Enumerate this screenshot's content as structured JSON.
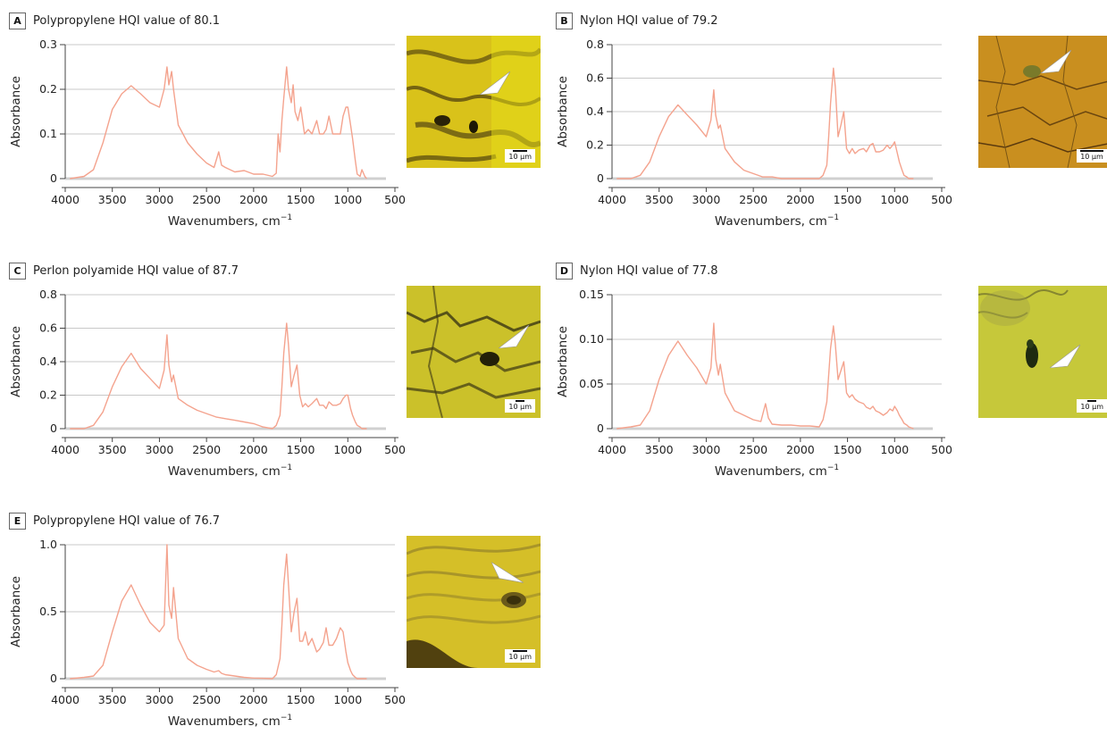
{
  "chart_data": [
    {
      "type": "line",
      "panel": "A",
      "title": "Polypropylene HQI value of 80.1",
      "xlabel": "Wavenumbers, cm",
      "xlabel_sup": "−1",
      "ylabel": "Absorbance",
      "xlim": [
        4000,
        500
      ],
      "xticks": [
        4000,
        3500,
        3000,
        2500,
        2000,
        1500,
        1000,
        500
      ],
      "ylim": [
        0,
        0.3
      ],
      "yticks": [
        0,
        0.1,
        0.2,
        0.3
      ],
      "ytick_labels": [
        "0",
        "0.1",
        "0.2",
        "0.3"
      ],
      "grid": true,
      "line_color": "#f4a38e",
      "scale_label": "10 µm",
      "x": [
        3950,
        3800,
        3700,
        3600,
        3500,
        3400,
        3300,
        3200,
        3100,
        3000,
        2950,
        2920,
        2900,
        2870,
        2850,
        2800,
        2700,
        2600,
        2500,
        2420,
        2370,
        2340,
        2300,
        2200,
        2100,
        2000,
        1900,
        1800,
        1760,
        1740,
        1720,
        1700,
        1680,
        1650,
        1630,
        1600,
        1580,
        1560,
        1530,
        1500,
        1460,
        1420,
        1380,
        1330,
        1300,
        1260,
        1230,
        1200,
        1160,
        1120,
        1080,
        1050,
        1020,
        1000,
        970,
        950,
        920,
        900,
        870,
        850,
        820,
        800
      ],
      "y": [
        0.0,
        0.005,
        0.02,
        0.08,
        0.155,
        0.19,
        0.208,
        0.19,
        0.17,
        0.16,
        0.2,
        0.25,
        0.21,
        0.24,
        0.2,
        0.12,
        0.08,
        0.055,
        0.035,
        0.025,
        0.06,
        0.03,
        0.025,
        0.015,
        0.018,
        0.01,
        0.01,
        0.005,
        0.012,
        0.1,
        0.06,
        0.13,
        0.18,
        0.25,
        0.2,
        0.17,
        0.21,
        0.15,
        0.13,
        0.16,
        0.1,
        0.11,
        0.1,
        0.13,
        0.1,
        0.1,
        0.11,
        0.14,
        0.1,
        0.1,
        0.1,
        0.14,
        0.16,
        0.16,
        0.12,
        0.09,
        0.04,
        0.01,
        0.005,
        0.02,
        0.005,
        0.0
      ]
    },
    {
      "type": "line",
      "panel": "B",
      "title": "Nylon HQI value of 79.2",
      "xlabel": "Wavenumbers, cm",
      "xlabel_sup": "−1",
      "ylabel": "Absorbance",
      "xlim": [
        4000,
        500
      ],
      "xticks": [
        4000,
        3500,
        3000,
        2500,
        2000,
        1500,
        1000,
        500
      ],
      "ylim": [
        0,
        0.8
      ],
      "yticks": [
        0,
        0.2,
        0.4,
        0.6,
        0.8
      ],
      "ytick_labels": [
        "0",
        "0.2",
        "0.4",
        "0.6",
        "0.8"
      ],
      "grid": true,
      "line_color": "#f4a38e",
      "scale_label": "10 µm",
      "x": [
        3950,
        3800,
        3700,
        3600,
        3500,
        3400,
        3300,
        3200,
        3100,
        3000,
        2950,
        2920,
        2900,
        2870,
        2850,
        2800,
        2700,
        2600,
        2500,
        2400,
        2300,
        2200,
        2100,
        2000,
        1900,
        1800,
        1760,
        1720,
        1700,
        1680,
        1650,
        1630,
        1600,
        1570,
        1540,
        1510,
        1480,
        1450,
        1420,
        1380,
        1330,
        1300,
        1260,
        1230,
        1200,
        1160,
        1120,
        1080,
        1050,
        1020,
        1000,
        970,
        950,
        920,
        900,
        870,
        850,
        800
      ],
      "y": [
        0.0,
        0.0,
        0.02,
        0.1,
        0.25,
        0.37,
        0.44,
        0.38,
        0.32,
        0.25,
        0.35,
        0.53,
        0.38,
        0.3,
        0.32,
        0.18,
        0.1,
        0.05,
        0.03,
        0.01,
        0.01,
        0.0,
        0.0,
        0.0,
        0.0,
        0.0,
        0.02,
        0.08,
        0.25,
        0.45,
        0.66,
        0.55,
        0.25,
        0.32,
        0.4,
        0.18,
        0.15,
        0.18,
        0.15,
        0.17,
        0.18,
        0.16,
        0.2,
        0.21,
        0.16,
        0.16,
        0.17,
        0.2,
        0.18,
        0.2,
        0.22,
        0.15,
        0.1,
        0.05,
        0.02,
        0.01,
        0.0,
        0.0
      ]
    },
    {
      "type": "line",
      "panel": "C",
      "title": "Perlon polyamide HQI value of 87.7",
      "xlabel": "Wavenumbers, cm",
      "xlabel_sup": "−1",
      "ylabel": "Absorbance",
      "xlim": [
        4000,
        500
      ],
      "xticks": [
        4000,
        3500,
        3000,
        2500,
        2000,
        1500,
        1000,
        500
      ],
      "ylim": [
        0,
        0.8
      ],
      "yticks": [
        0,
        0.2,
        0.4,
        0.6,
        0.8
      ],
      "ytick_labels": [
        "0",
        "0.2",
        "0.4",
        "0.6",
        "0.8"
      ],
      "grid": true,
      "line_color": "#f4a38e",
      "scale_label": "10 µm",
      "x": [
        3950,
        3800,
        3700,
        3600,
        3500,
        3400,
        3300,
        3200,
        3100,
        3000,
        2950,
        2920,
        2900,
        2870,
        2850,
        2800,
        2700,
        2600,
        2500,
        2400,
        2300,
        2200,
        2100,
        2000,
        1900,
        1800,
        1760,
        1720,
        1700,
        1680,
        1650,
        1630,
        1600,
        1570,
        1540,
        1510,
        1480,
        1450,
        1420,
        1380,
        1330,
        1300,
        1260,
        1230,
        1200,
        1160,
        1120,
        1080,
        1050,
        1020,
        1000,
        970,
        950,
        920,
        900,
        870,
        850,
        800
      ],
      "y": [
        0.0,
        0.0,
        0.02,
        0.1,
        0.25,
        0.37,
        0.45,
        0.36,
        0.3,
        0.24,
        0.35,
        0.56,
        0.38,
        0.28,
        0.32,
        0.18,
        0.14,
        0.11,
        0.09,
        0.07,
        0.06,
        0.05,
        0.04,
        0.03,
        0.01,
        0.0,
        0.02,
        0.08,
        0.25,
        0.45,
        0.63,
        0.5,
        0.25,
        0.32,
        0.38,
        0.2,
        0.13,
        0.15,
        0.13,
        0.15,
        0.18,
        0.14,
        0.14,
        0.12,
        0.16,
        0.14,
        0.14,
        0.15,
        0.18,
        0.2,
        0.2,
        0.12,
        0.08,
        0.04,
        0.02,
        0.01,
        0.0,
        0.0
      ]
    },
    {
      "type": "line",
      "panel": "D",
      "title": "Nylon HQI value of 77.8",
      "xlabel": "Wavenumbers, cm",
      "xlabel_sup": "−1",
      "ylabel": "Absorbance",
      "xlim": [
        4000,
        500
      ],
      "xticks": [
        4000,
        3500,
        3000,
        2500,
        2000,
        1500,
        1000,
        500
      ],
      "ylim": [
        0,
        0.15
      ],
      "yticks": [
        0,
        0.05,
        0.1,
        0.15
      ],
      "ytick_labels": [
        "0",
        "0.05",
        "0.10",
        "0.15"
      ],
      "grid": true,
      "line_color": "#f4a38e",
      "scale_label": "10 µm",
      "x": [
        3950,
        3800,
        3700,
        3600,
        3500,
        3400,
        3300,
        3200,
        3100,
        3000,
        2950,
        2920,
        2900,
        2870,
        2850,
        2800,
        2700,
        2600,
        2500,
        2420,
        2370,
        2340,
        2300,
        2200,
        2100,
        2000,
        1900,
        1800,
        1760,
        1720,
        1700,
        1680,
        1650,
        1630,
        1600,
        1570,
        1540,
        1510,
        1480,
        1450,
        1420,
        1380,
        1330,
        1300,
        1260,
        1230,
        1200,
        1160,
        1120,
        1080,
        1050,
        1020,
        1000,
        970,
        950,
        920,
        900,
        870,
        850,
        800
      ],
      "y": [
        0.0,
        0.002,
        0.004,
        0.02,
        0.055,
        0.082,
        0.098,
        0.082,
        0.068,
        0.05,
        0.068,
        0.118,
        0.078,
        0.06,
        0.072,
        0.04,
        0.02,
        0.015,
        0.01,
        0.008,
        0.028,
        0.012,
        0.005,
        0.004,
        0.004,
        0.003,
        0.003,
        0.002,
        0.01,
        0.03,
        0.06,
        0.09,
        0.115,
        0.095,
        0.055,
        0.065,
        0.075,
        0.04,
        0.035,
        0.038,
        0.033,
        0.03,
        0.028,
        0.024,
        0.022,
        0.025,
        0.02,
        0.018,
        0.015,
        0.018,
        0.022,
        0.02,
        0.025,
        0.02,
        0.015,
        0.01,
        0.006,
        0.004,
        0.002,
        0.0
      ]
    },
    {
      "type": "line",
      "panel": "E",
      "title": "Polypropylene HQI value of 76.7",
      "xlabel": "Wavenumbers, cm",
      "xlabel_sup": "−1",
      "ylabel": "Absorbance",
      "xlim": [
        4000,
        500
      ],
      "xticks": [
        4000,
        3500,
        3000,
        2500,
        2000,
        1500,
        1000,
        500
      ],
      "ylim": [
        0,
        1.0
      ],
      "yticks": [
        0,
        0.5,
        1.0
      ],
      "ytick_labels": [
        "0",
        "0.5",
        "1.0"
      ],
      "grid": true,
      "line_color": "#f4a38e",
      "scale_label": "10 µm",
      "x": [
        3950,
        3800,
        3700,
        3600,
        3500,
        3400,
        3300,
        3200,
        3100,
        3000,
        2950,
        2920,
        2900,
        2870,
        2850,
        2800,
        2700,
        2600,
        2500,
        2420,
        2370,
        2340,
        2300,
        2200,
        2100,
        2000,
        1900,
        1800,
        1760,
        1720,
        1700,
        1680,
        1650,
        1630,
        1600,
        1570,
        1540,
        1510,
        1480,
        1450,
        1420,
        1380,
        1330,
        1300,
        1260,
        1230,
        1200,
        1160,
        1120,
        1080,
        1050,
        1020,
        1000,
        970,
        950,
        920,
        900,
        870,
        850,
        800
      ],
      "y": [
        0.0,
        0.01,
        0.02,
        0.1,
        0.35,
        0.58,
        0.7,
        0.55,
        0.42,
        0.35,
        0.4,
        1.0,
        0.55,
        0.45,
        0.68,
        0.3,
        0.15,
        0.1,
        0.07,
        0.05,
        0.06,
        0.04,
        0.03,
        0.02,
        0.01,
        0.005,
        0.003,
        0.0,
        0.03,
        0.15,
        0.4,
        0.7,
        0.93,
        0.7,
        0.35,
        0.5,
        0.6,
        0.28,
        0.28,
        0.35,
        0.25,
        0.3,
        0.2,
        0.22,
        0.27,
        0.38,
        0.25,
        0.25,
        0.3,
        0.38,
        0.35,
        0.2,
        0.12,
        0.06,
        0.03,
        0.01,
        0.0,
        0.0,
        0.0,
        0.0
      ]
    }
  ]
}
